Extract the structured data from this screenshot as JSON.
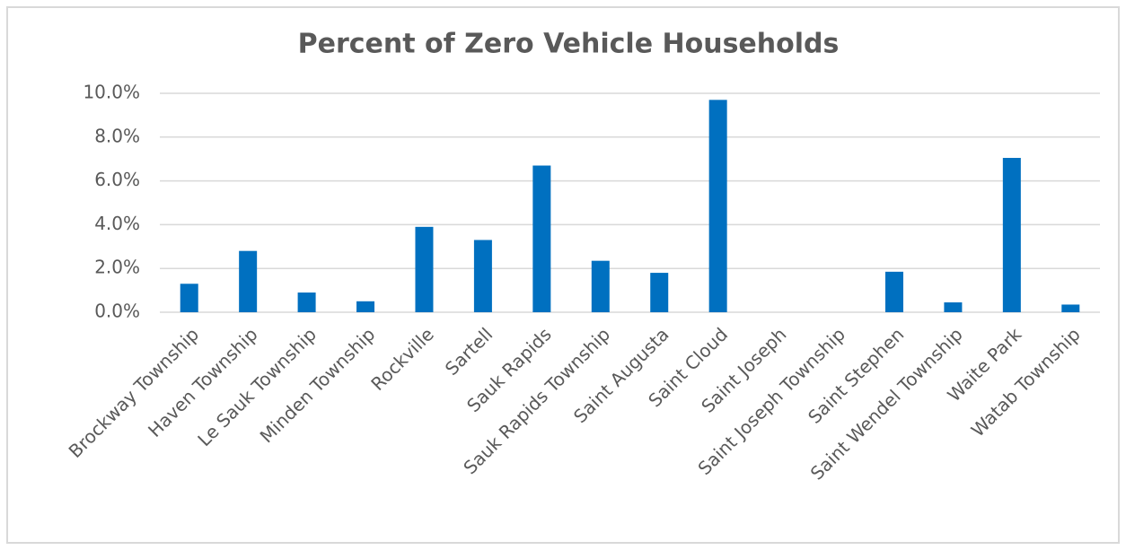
{
  "chart_data": {
    "type": "bar",
    "title": "Percent of Zero Vehicle Households",
    "categories": [
      "Brockway Township",
      "Haven Township",
      "Le Sauk Township",
      "Minden Township",
      "Rockville",
      "Sartell",
      "Sauk Rapids",
      "Sauk Rapids Township",
      "Saint Augusta",
      "Saint Cloud",
      "Saint Joseph",
      "Saint Joseph Township",
      "Saint Stephen",
      "Saint Wendel Township",
      "Waite Park",
      "Watab Township"
    ],
    "values": [
      1.3,
      2.8,
      0.9,
      0.5,
      3.9,
      3.3,
      6.7,
      2.35,
      1.8,
      9.7,
      0,
      0,
      1.85,
      0.45,
      7.05,
      0.35
    ],
    "color": "#0070c0",
    "ylim": [
      0,
      10
    ],
    "yticks": [
      {
        "value": 0,
        "label": "0.0%"
      },
      {
        "value": 2,
        "label": "2.0%"
      },
      {
        "value": 4,
        "label": "4.0%"
      },
      {
        "value": 6,
        "label": "6.0%"
      },
      {
        "value": 8,
        "label": "8.0%"
      },
      {
        "value": 10,
        "label": "10.0%"
      }
    ],
    "grid": true
  }
}
